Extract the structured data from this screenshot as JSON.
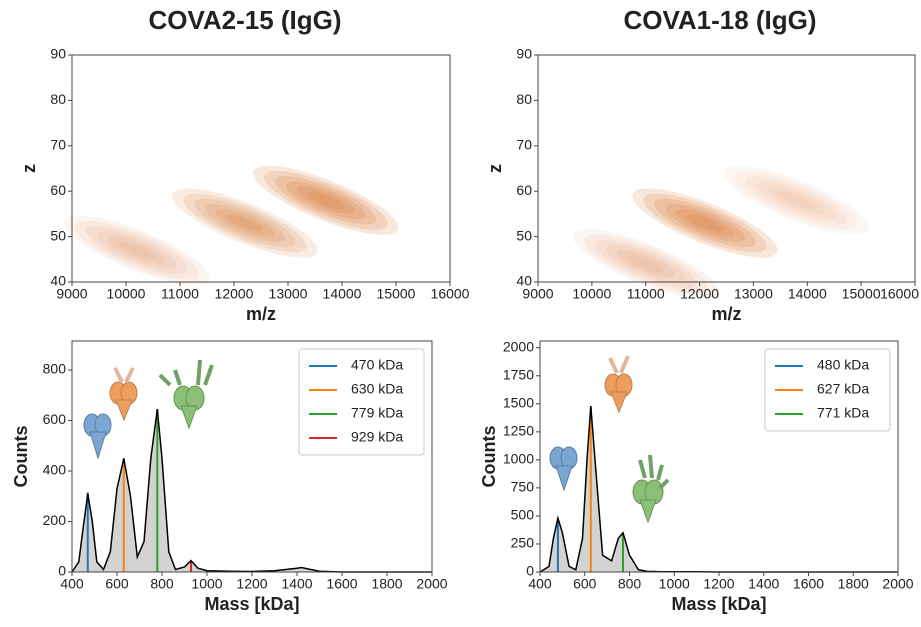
{
  "chart_data": [
    {
      "type": "heatmap",
      "title": "COVA2-15 (IgG)",
      "x_label": "m/z",
      "y_label": "z",
      "x": [
        10200,
        12200,
        13700
      ],
      "y": [
        47,
        53,
        58
      ],
      "values": [
        0.45,
        0.8,
        1.0
      ],
      "color": "#d2691e",
      "xlim": [
        9000,
        16000
      ],
      "xticks": [
        9000,
        10000,
        11000,
        12000,
        13000,
        14000,
        15000,
        16000
      ],
      "ylim": [
        40,
        90
      ],
      "yticks": [
        40,
        50,
        60,
        70,
        80,
        90
      ]
    },
    {
      "type": "heatmap",
      "title": "COVA1-18 (IgG)",
      "x_label": "m/z",
      "y_label": "z",
      "x": [
        11000,
        12100,
        13800
      ],
      "y": [
        44,
        53,
        58
      ],
      "values": [
        0.45,
        1.0,
        0.35
      ],
      "color": "#d2691e",
      "xlim": [
        9000,
        16000
      ],
      "xticks": [
        9000,
        10000,
        11000,
        12000,
        13000,
        14000,
        15000,
        16000
      ],
      "ylim": [
        40,
        90
      ],
      "yticks": [
        40,
        50,
        60,
        70,
        80,
        90
      ]
    },
    {
      "type": "line",
      "x_label": "Mass [kDa]",
      "y_label": "Counts",
      "x": [
        400,
        430,
        450,
        470,
        490,
        510,
        540,
        570,
        600,
        630,
        660,
        690,
        720,
        750,
        779,
        800,
        830,
        860,
        900,
        929,
        960,
        1000,
        1100,
        1200,
        1300,
        1400,
        1420,
        1450,
        1500,
        1600,
        1800,
        2000
      ],
      "values": [
        0,
        40,
        180,
        310,
        200,
        40,
        10,
        80,
        330,
        450,
        300,
        60,
        120,
        450,
        645,
        450,
        80,
        10,
        20,
        45,
        15,
        5,
        3,
        2,
        5,
        15,
        18,
        12,
        3,
        0,
        0,
        0
      ],
      "color": "#000000",
      "fill": "#d3d3d3",
      "xlim": [
        400,
        2000
      ],
      "xticks": [
        400,
        600,
        800,
        1000,
        1200,
        1400,
        1600,
        1800,
        2000
      ],
      "ylim": [
        0,
        915
      ],
      "yticks": [
        0,
        200,
        400,
        600,
        800
      ],
      "legend": "upper right",
      "series": [
        {
          "name": "470 kDa",
          "color": "#1f77b4",
          "x": 470,
          "value": 315
        },
        {
          "name": "630 kDa",
          "color": "#ff7f0e",
          "x": 630,
          "value": 450
        },
        {
          "name": "779 kDa",
          "color": "#2ca02c",
          "x": 779,
          "value": 645
        },
        {
          "name": "929 kDa",
          "color": "#d62728",
          "x": 929,
          "value": 45
        }
      ]
    },
    {
      "type": "line",
      "x_label": "Mass [kDa]",
      "y_label": "Counts",
      "x": [
        400,
        440,
        460,
        480,
        500,
        530,
        560,
        590,
        610,
        627,
        650,
        680,
        720,
        750,
        771,
        800,
        840,
        880,
        950,
        1000,
        1100,
        1200,
        1400,
        1600,
        2000
      ],
      "values": [
        0,
        50,
        300,
        480,
        350,
        50,
        20,
        300,
        1000,
        1480,
        900,
        150,
        100,
        300,
        350,
        150,
        20,
        5,
        3,
        2,
        2,
        0,
        0,
        0,
        0
      ],
      "color": "#000000",
      "fill": "#d3d3d3",
      "xlim": [
        400,
        2000
      ],
      "xticks": [
        400,
        600,
        800,
        1000,
        1200,
        1400,
        1600,
        1800,
        2000
      ],
      "ylim": [
        0,
        2060
      ],
      "yticks": [
        0,
        250,
        500,
        750,
        1000,
        1250,
        1500,
        1750,
        2000
      ],
      "legend": "upper right",
      "series": [
        {
          "name": "480 kDa",
          "color": "#1f77b4",
          "x": 480,
          "value": 480
        },
        {
          "name": "627 kDa",
          "color": "#ff7f0e",
          "x": 627,
          "value": 1480
        },
        {
          "name": "771 kDa",
          "color": "#2ca02c",
          "x": 771,
          "value": 350
        }
      ]
    }
  ]
}
